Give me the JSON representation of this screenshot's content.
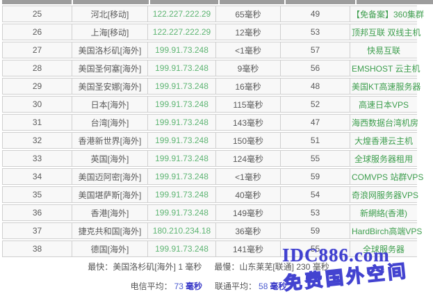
{
  "table": {
    "column_keys": [
      "index",
      "location",
      "ip",
      "latency",
      "score",
      "sponsor"
    ],
    "rows": [
      {
        "index": "25",
        "location": "河北[移动]",
        "ip": "122.227.222.29",
        "latency": "65毫秒",
        "score": "49",
        "sponsor": "【免备案】360集群"
      },
      {
        "index": "26",
        "location": "上海[移动]",
        "ip": "122.227.222.29",
        "latency": "12毫秒",
        "score": "53",
        "sponsor": "顶邦互联 双线主机"
      },
      {
        "index": "27",
        "location": "美国洛杉矶[海外]",
        "ip": "199.91.73.248",
        "latency": "<1毫秒",
        "score": "57",
        "sponsor": "快易互联"
      },
      {
        "index": "28",
        "location": "美国圣何塞[海外]",
        "ip": "199.91.73.248",
        "latency": "9毫秒",
        "score": "56",
        "sponsor": "EMSHOST 云主机"
      },
      {
        "index": "29",
        "location": "美国圣安娜[海外]",
        "ip": "199.91.73.248",
        "latency": "16毫秒",
        "score": "48",
        "sponsor": "美国KT高速服务器"
      },
      {
        "index": "30",
        "location": "日本[海外]",
        "ip": "199.91.73.248",
        "latency": "115毫秒",
        "score": "52",
        "sponsor": "高速日本VPS"
      },
      {
        "index": "31",
        "location": "台湾[海外]",
        "ip": "199.91.73.248",
        "latency": "143毫秒",
        "score": "47",
        "sponsor": "海西数据台湾机房"
      },
      {
        "index": "32",
        "location": "香港新世界[海外]",
        "ip": "199.91.73.248",
        "latency": "150毫秒",
        "score": "51",
        "sponsor": "大煌香港云主机"
      },
      {
        "index": "33",
        "location": "英国[海外]",
        "ip": "199.91.73.248",
        "latency": "124毫秒",
        "score": "55",
        "sponsor": "全球服务器租用"
      },
      {
        "index": "34",
        "location": "美国迈阿密[海外]",
        "ip": "199.91.73.248",
        "latency": "<1毫秒",
        "score": "59",
        "sponsor": "COMVPS 站群VPS"
      },
      {
        "index": "35",
        "location": "美国堪萨斯[海外]",
        "ip": "199.91.73.248",
        "latency": "40毫秒",
        "score": "54",
        "sponsor": "奇浪网服务器VPS"
      },
      {
        "index": "36",
        "location": "香港[海外]",
        "ip": "199.91.73.248",
        "latency": "149毫秒",
        "score": "53",
        "sponsor": "新網絡(香港)"
      },
      {
        "index": "37",
        "location": "捷克共和国[海外]",
        "ip": "180.210.234.18",
        "latency": "36毫秒",
        "score": "59",
        "sponsor": "HardBirch高端VPS"
      },
      {
        "index": "38",
        "location": "德国[海外]",
        "ip": "199.91.73.248",
        "latency": "141毫秒",
        "score": "55",
        "sponsor": "全球服务器"
      }
    ]
  },
  "summary": {
    "fastest_label": "最快：",
    "fastest_value": "美国洛杉矶[海外] 1 毫秒",
    "slowest_label": "最慢：",
    "slowest_value": "山东莱芜[联通] 230 毫秒",
    "telecom_avg_label": "电信平均：",
    "telecom_avg_value": "73",
    "telecom_avg_unit": "毫秒",
    "unicom_avg_label": "联通平均：",
    "unicom_avg_value": "58",
    "unicom_avg_unit": "毫秒"
  },
  "watermark": {
    "site": "IDC886.com",
    "slogan": "免费国外空间"
  },
  "colors": {
    "ip_green": "#5eb573",
    "sponsor_green": "#3e9e4e",
    "table_text_gray": "#5a5a5a",
    "summary_blue": "#4a5ad0",
    "watermark_blue": "#4040cf",
    "row_background": "#f8f8f8",
    "row_border": "#cfcfcf",
    "top_strip_gray": "#9d9d9d"
  }
}
